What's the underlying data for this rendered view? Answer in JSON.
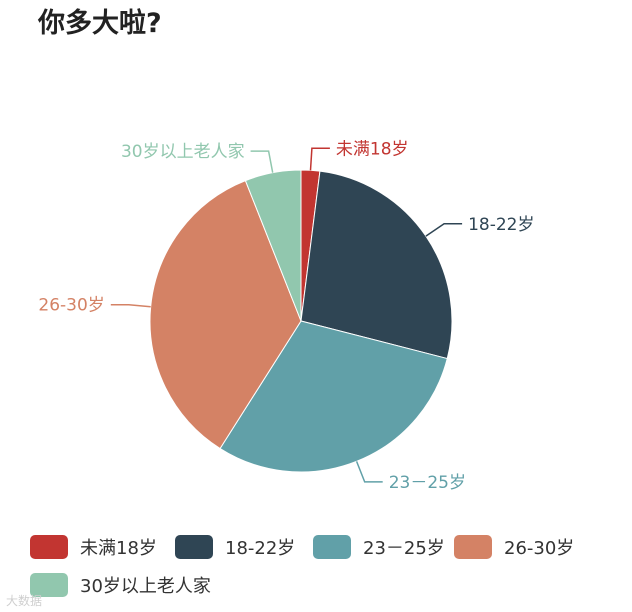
{
  "header": {
    "title": "你多大啦?"
  },
  "chart_data": {
    "type": "pie",
    "title": "你多大啦?",
    "categories": [
      "未满18岁",
      "18-22岁",
      "23－25岁",
      "26-30岁",
      "30岁以上老人家"
    ],
    "values": [
      2,
      27,
      30,
      35,
      6
    ],
    "unit": "%",
    "colors": [
      "#c23531",
      "#2f4554",
      "#61a0a8",
      "#d48265",
      "#91c7ae"
    ],
    "legend": "bottom",
    "labels": "outside"
  },
  "watermark": {
    "text": "大数据"
  }
}
